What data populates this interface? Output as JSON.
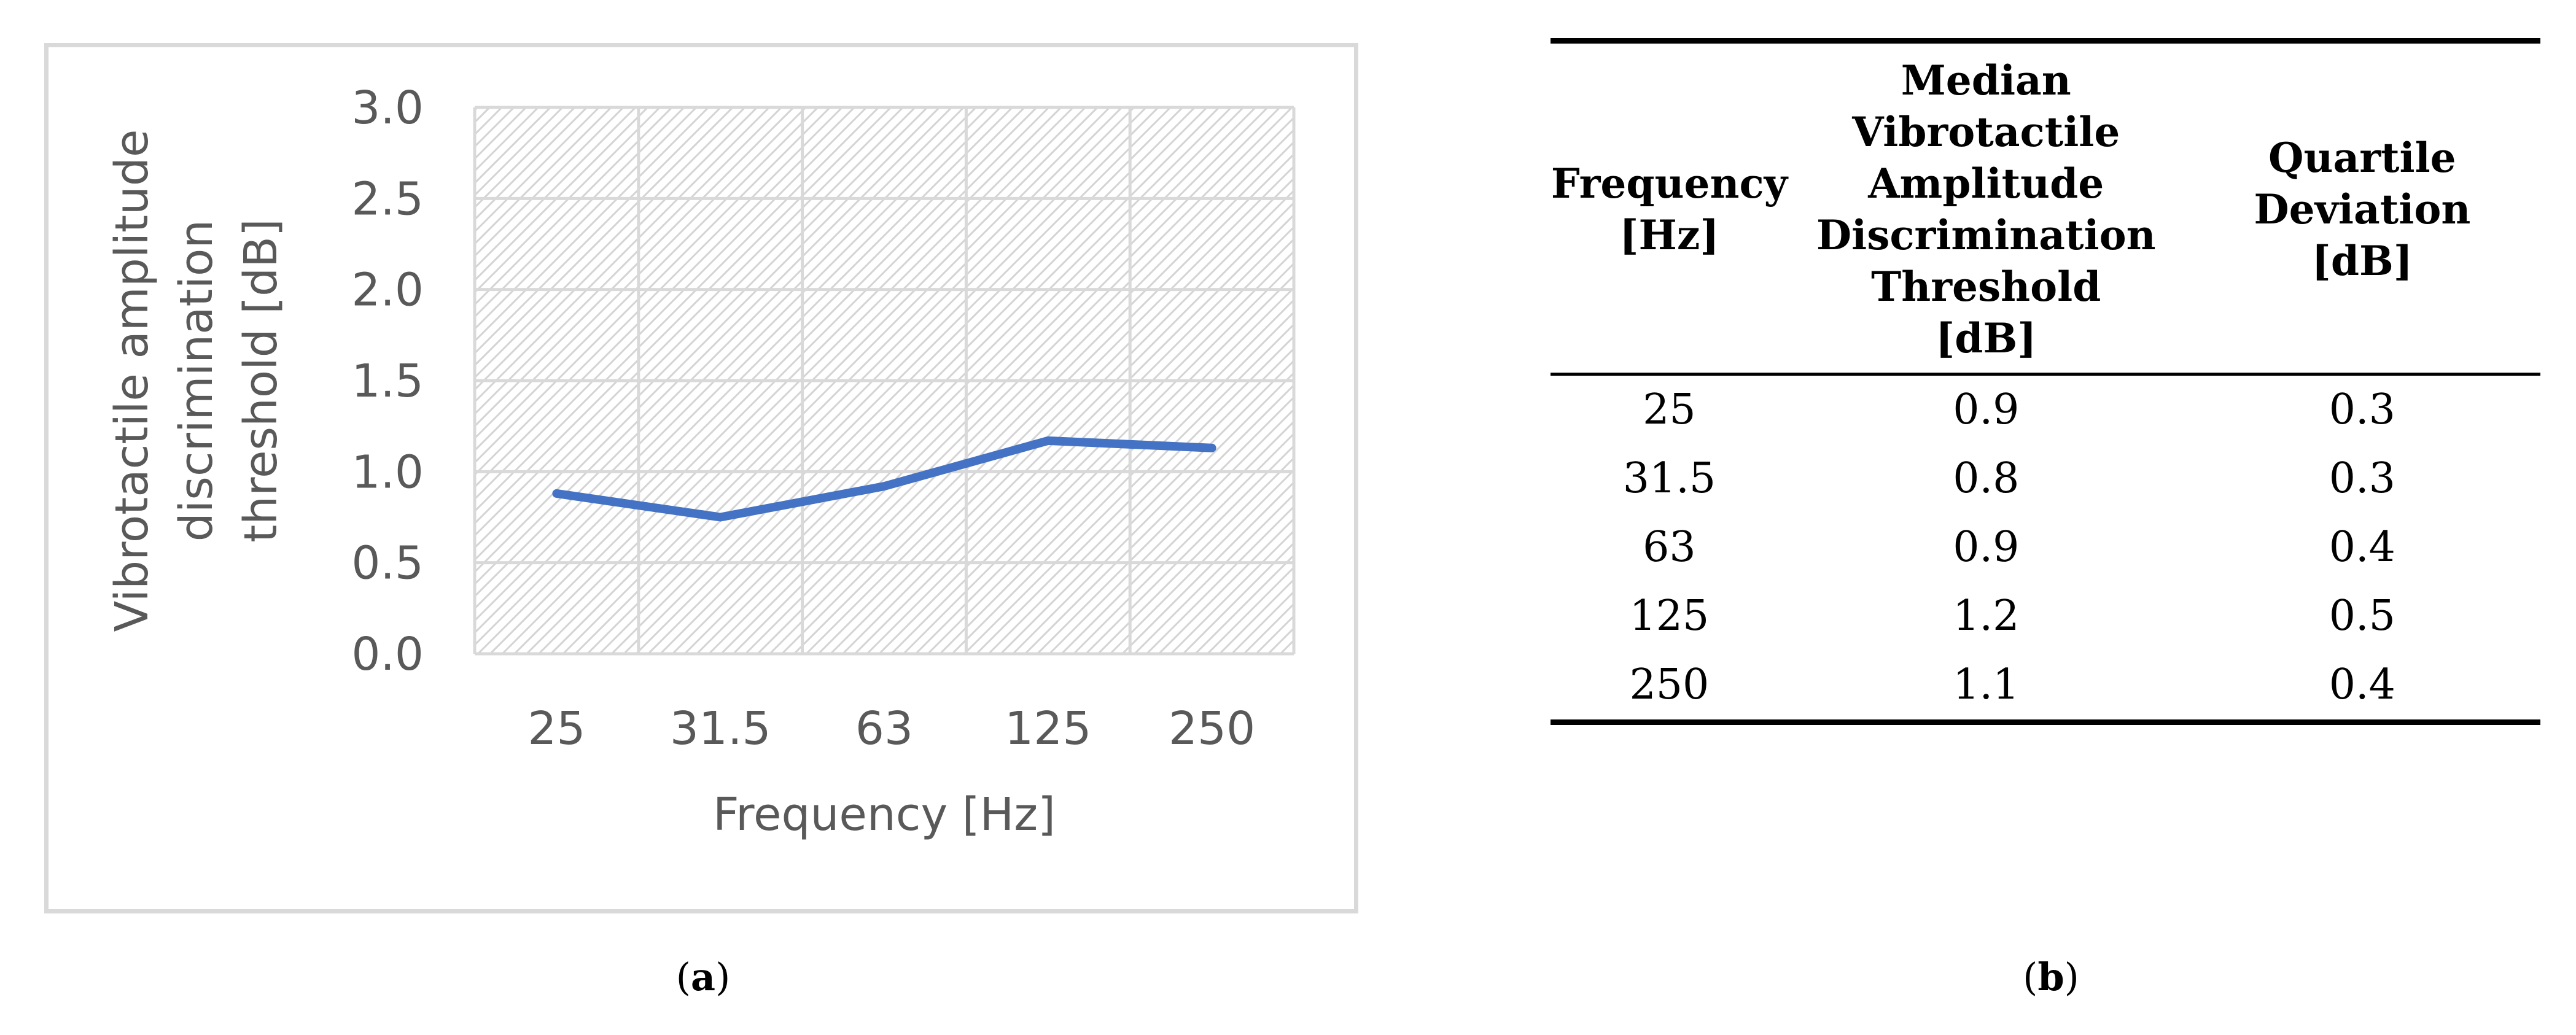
{
  "chart_data": {
    "type": "line",
    "categories": [
      "25",
      "31.5",
      "63",
      "125",
      "250"
    ],
    "series": [
      {
        "values": [
          0.88,
          0.75,
          0.92,
          1.17,
          1.13
        ]
      }
    ],
    "xlabel": "Frequency [Hz]",
    "ylabel_lines": [
      "Vibrotactile amplitude",
      "discrimination",
      "threshold  [dB]"
    ],
    "ylim": [
      0,
      3
    ],
    "yticks": [
      "0.0",
      "0.5",
      "1.0",
      "1.5",
      "2.0",
      "2.5",
      "3.0"
    ],
    "grid": true,
    "line_color": "#4472c4"
  },
  "captions": {
    "a": "a",
    "b": "b"
  },
  "table": {
    "headers": [
      [
        "Frequency",
        "[Hz]"
      ],
      [
        "Median",
        "Vibrotactile",
        "Amplitude",
        "Discrimination",
        "Threshold",
        "[dB]"
      ],
      [
        "Quartile",
        "Deviation",
        "[dB]"
      ]
    ],
    "rows": [
      [
        "25",
        "0.9",
        "0.3"
      ],
      [
        "31.5",
        "0.8",
        "0.3"
      ],
      [
        "63",
        "0.9",
        "0.4"
      ],
      [
        "125",
        "1.2",
        "0.5"
      ],
      [
        "250",
        "1.1",
        "0.4"
      ]
    ]
  }
}
